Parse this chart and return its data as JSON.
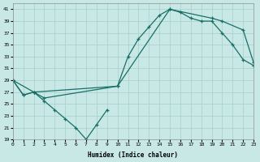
{
  "xlabel": "Humidex (Indice chaleur)",
  "background_color": "#c8e8e6",
  "grid_color": "#a8ceca",
  "line_color": "#1a6e68",
  "xlim": [
    0,
    23
  ],
  "ylim": [
    19,
    42
  ],
  "yticks": [
    19,
    21,
    23,
    25,
    27,
    29,
    31,
    33,
    35,
    37,
    39,
    41
  ],
  "xticks": [
    0,
    1,
    2,
    3,
    4,
    5,
    6,
    7,
    8,
    9,
    10,
    11,
    12,
    13,
    14,
    15,
    16,
    17,
    18,
    19,
    20,
    21,
    22,
    23
  ],
  "line1_x": [
    0,
    1,
    2,
    3,
    4,
    5,
    6,
    7,
    8,
    9
  ],
  "line1_y": [
    29,
    26.5,
    27,
    25.5,
    24,
    22.5,
    21,
    19,
    21.5,
    24
  ],
  "line2_x": [
    0,
    1,
    2,
    3,
    10,
    11,
    12,
    13,
    14,
    15,
    16,
    17,
    18,
    19,
    20,
    21,
    22,
    23
  ],
  "line2_y": [
    29,
    26.5,
    27,
    26,
    28,
    33,
    36,
    38,
    40,
    41,
    40.5,
    39.5,
    39,
    39,
    37,
    35,
    32.5,
    31.5
  ],
  "line3_x": [
    0,
    2,
    10,
    15,
    19,
    20,
    22,
    23
  ],
  "line3_y": [
    29,
    27,
    28,
    41,
    39.5,
    39,
    37.5,
    32
  ]
}
